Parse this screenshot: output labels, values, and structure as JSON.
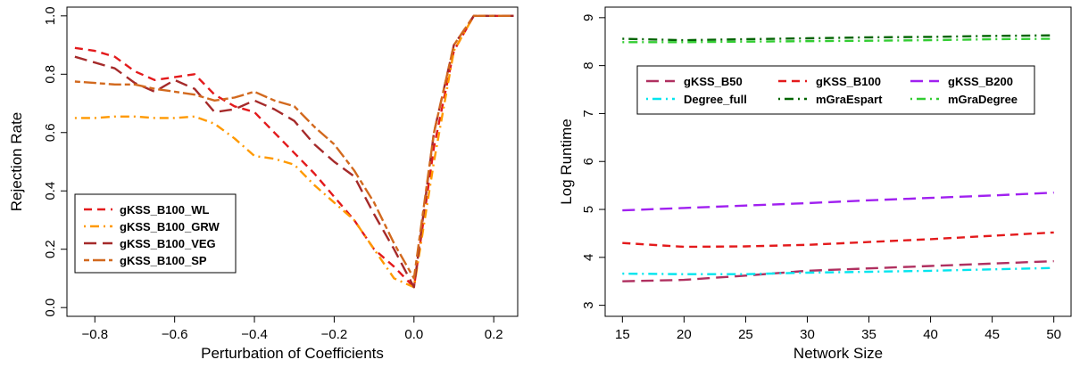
{
  "chart_data": [
    {
      "type": "line",
      "title": "",
      "xlabel": "Perturbation of Coefficients",
      "ylabel": "Rejection Rate",
      "xlim": [
        -0.87,
        0.26
      ],
      "ylim": [
        -0.03,
        1.03
      ],
      "xticks": [
        -0.8,
        -0.6,
        -0.4,
        -0.2,
        0.0,
        0.2
      ],
      "xtick_labels": [
        "−0.8",
        "−0.6",
        "−0.4",
        "−0.2",
        "0.0",
        "0.2"
      ],
      "yticks": [
        0.0,
        0.2,
        0.4,
        0.6,
        0.8,
        1.0
      ],
      "ytick_labels": [
        "0.0",
        "0.2",
        "0.4",
        "0.6",
        "0.8",
        "1.0"
      ],
      "grid": false,
      "legend_position": "bottom-left",
      "series": [
        {
          "name": "gKSS_B100_WL",
          "color": "#e31a1c",
          "dash": "dashed",
          "x": [
            -0.85,
            -0.8,
            -0.75,
            -0.7,
            -0.65,
            -0.6,
            -0.55,
            -0.5,
            -0.45,
            -0.4,
            -0.35,
            -0.3,
            -0.25,
            -0.2,
            -0.15,
            -0.1,
            -0.05,
            0.0,
            0.05,
            0.1,
            0.15,
            0.2,
            0.25
          ],
          "y": [
            0.89,
            0.88,
            0.86,
            0.81,
            0.78,
            0.79,
            0.8,
            0.73,
            0.69,
            0.67,
            0.6,
            0.53,
            0.46,
            0.38,
            0.3,
            0.2,
            0.14,
            0.07,
            0.55,
            0.88,
            1.0,
            1.0,
            1.0
          ]
        },
        {
          "name": "gKSS_B100_GRW",
          "color": "#ff9900",
          "dash": "dotdash",
          "x": [
            -0.85,
            -0.8,
            -0.75,
            -0.7,
            -0.65,
            -0.6,
            -0.55,
            -0.5,
            -0.45,
            -0.4,
            -0.35,
            -0.3,
            -0.25,
            -0.2,
            -0.15,
            -0.1,
            -0.05,
            0.0,
            0.05,
            0.1,
            0.15,
            0.2,
            0.25
          ],
          "y": [
            0.65,
            0.65,
            0.655,
            0.655,
            0.65,
            0.65,
            0.655,
            0.63,
            0.58,
            0.52,
            0.51,
            0.49,
            0.42,
            0.36,
            0.3,
            0.2,
            0.1,
            0.07,
            0.5,
            0.88,
            1.0,
            1.0,
            1.0
          ]
        },
        {
          "name": "gKSS_B100_VEG",
          "color": "#a52a2a",
          "dash": "longdash",
          "x": [
            -0.85,
            -0.8,
            -0.75,
            -0.7,
            -0.65,
            -0.6,
            -0.55,
            -0.5,
            -0.45,
            -0.4,
            -0.35,
            -0.3,
            -0.25,
            -0.2,
            -0.15,
            -0.1,
            -0.05,
            0.0,
            0.05,
            0.1,
            0.15,
            0.2,
            0.25
          ],
          "y": [
            0.86,
            0.84,
            0.82,
            0.77,
            0.74,
            0.78,
            0.75,
            0.67,
            0.68,
            0.71,
            0.68,
            0.64,
            0.56,
            0.5,
            0.45,
            0.32,
            0.2,
            0.07,
            0.6,
            0.9,
            1.0,
            1.0,
            1.0
          ]
        },
        {
          "name": "gKSS_B100_SP",
          "color": "#d2691e",
          "dash": "twodash",
          "x": [
            -0.85,
            -0.8,
            -0.75,
            -0.7,
            -0.65,
            -0.6,
            -0.55,
            -0.5,
            -0.45,
            -0.4,
            -0.35,
            -0.3,
            -0.25,
            -0.2,
            -0.15,
            -0.1,
            -0.05,
            0.0,
            0.05,
            0.1,
            0.15,
            0.2,
            0.25
          ],
          "y": [
            0.775,
            0.77,
            0.765,
            0.765,
            0.75,
            0.74,
            0.73,
            0.71,
            0.72,
            0.74,
            0.71,
            0.69,
            0.62,
            0.56,
            0.47,
            0.36,
            0.22,
            0.1,
            0.6,
            0.9,
            1.0,
            1.0,
            1.0
          ]
        }
      ]
    },
    {
      "type": "line",
      "title": "",
      "xlabel": "Network Size",
      "ylabel": "Log Runtime",
      "xlim": [
        13.6,
        51.4
      ],
      "ylim": [
        2.77,
        9.22
      ],
      "xticks": [
        15,
        20,
        25,
        30,
        35,
        40,
        45,
        50
      ],
      "xtick_labels": [
        "15",
        "20",
        "25",
        "30",
        "35",
        "40",
        "45",
        "50"
      ],
      "yticks": [
        3,
        4,
        5,
        6,
        7,
        8,
        9
      ],
      "ytick_labels": [
        "3",
        "4",
        "5",
        "6",
        "7",
        "8",
        "9"
      ],
      "grid": false,
      "legend_position": "top-center",
      "series": [
        {
          "name": "gKSS_B50",
          "color": "#b03060",
          "dash": "longdash",
          "x": [
            15,
            20,
            25,
            30,
            35,
            40,
            45,
            50
          ],
          "y": [
            3.5,
            3.53,
            3.62,
            3.72,
            3.77,
            3.82,
            3.87,
            3.92
          ]
        },
        {
          "name": "gKSS_B100",
          "color": "#e31a1c",
          "dash": "dashed",
          "x": [
            15,
            20,
            25,
            30,
            35,
            40,
            45,
            50
          ],
          "y": [
            4.3,
            4.22,
            4.23,
            4.26,
            4.32,
            4.38,
            4.45,
            4.52
          ]
        },
        {
          "name": "gKSS_B200",
          "color": "#a020f0",
          "dash": "longdash",
          "x": [
            15,
            20,
            25,
            30,
            35,
            40,
            45,
            50
          ],
          "y": [
            4.98,
            5.03,
            5.08,
            5.13,
            5.19,
            5.24,
            5.29,
            5.35
          ]
        },
        {
          "name": "Degree_full",
          "color": "#00e5ee",
          "dash": "dotdash",
          "x": [
            15,
            20,
            25,
            30,
            35,
            40,
            45,
            50
          ],
          "y": [
            3.66,
            3.65,
            3.65,
            3.68,
            3.7,
            3.72,
            3.75,
            3.78
          ]
        },
        {
          "name": "mGraEspart",
          "color": "#006400",
          "dash": "dotdash",
          "x": [
            15,
            20,
            25,
            30,
            35,
            40,
            45,
            50
          ],
          "y": [
            8.56,
            8.53,
            8.55,
            8.57,
            8.59,
            8.6,
            8.62,
            8.63
          ]
        },
        {
          "name": "mGraDegree",
          "color": "#32cd32",
          "dash": "dotdash",
          "x": [
            15,
            20,
            25,
            30,
            35,
            40,
            45,
            50
          ],
          "y": [
            8.49,
            8.49,
            8.5,
            8.51,
            8.52,
            8.53,
            8.55,
            8.56
          ]
        }
      ]
    }
  ]
}
